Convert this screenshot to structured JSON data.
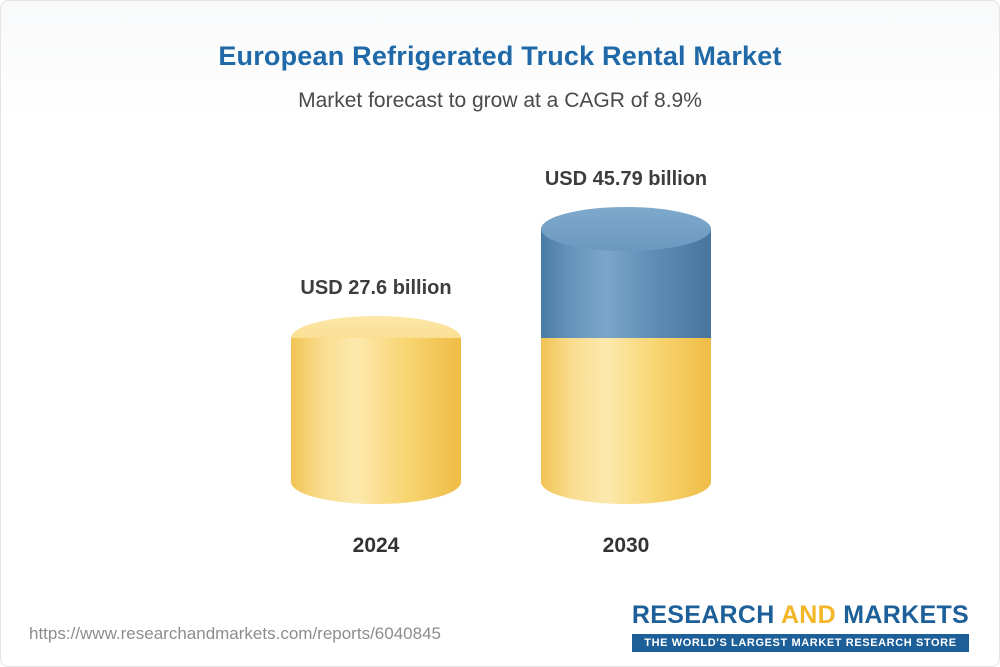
{
  "header": {
    "title": "European Refrigerated Truck Rental Market",
    "subtitle": "Market forecast to grow at a CAGR of 8.9%"
  },
  "chart_data": {
    "type": "bar",
    "title": "European Refrigerated Truck Rental Market",
    "subtitle": "Market forecast to grow at a CAGR of 8.9%",
    "cagr_percent": 8.9,
    "unit": "USD billion",
    "categories": [
      "2024",
      "2030"
    ],
    "values": [
      27.6,
      45.79
    ],
    "value_labels": [
      "USD 27.6 billion",
      "USD 45.79 billion"
    ],
    "colors": {
      "base_segment": "#F6C94F",
      "growth_segment": "#5C8CB5",
      "title_text": "#2069A8",
      "label_text": "#3D3D3D"
    }
  },
  "footer": {
    "url": "https://www.researchandmarkets.com/reports/6040845",
    "logo": {
      "word1": "RESEARCH",
      "word2": "AND",
      "word3": "MARKETS",
      "tagline": "THE WORLD'S LARGEST MARKET RESEARCH STORE"
    }
  }
}
